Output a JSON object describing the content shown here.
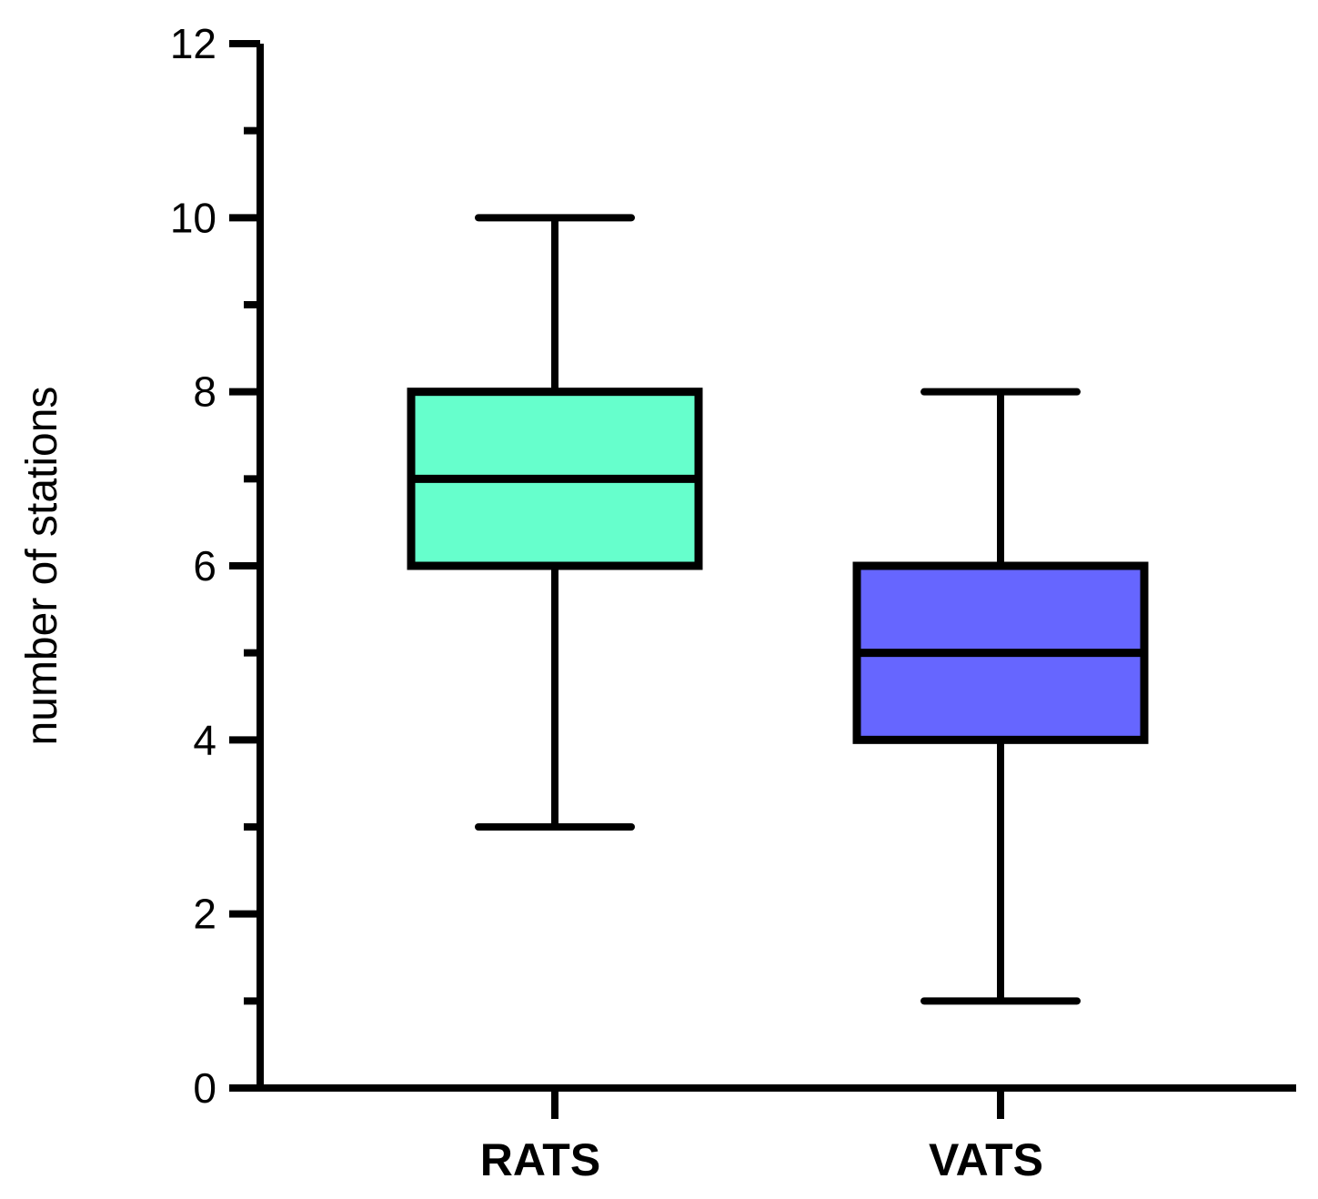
{
  "chart_data": {
    "type": "box",
    "title": "",
    "xlabel": "",
    "ylabel": "number of stations",
    "ylim": [
      0,
      12
    ],
    "yticks_major": [
      0,
      2,
      4,
      6,
      8,
      10,
      12
    ],
    "yticks_minor": [
      1,
      3,
      5,
      7,
      9,
      11
    ],
    "grid": false,
    "categories": [
      "RATS",
      "VATS"
    ],
    "series": [
      {
        "name": "RATS",
        "min": 3,
        "q1": 6,
        "median": 7,
        "q3": 8,
        "max": 10,
        "color": "#66FFCC"
      },
      {
        "name": "VATS",
        "min": 1,
        "q1": 4,
        "median": 5,
        "q3": 6,
        "max": 8,
        "color": "#6666FF"
      }
    ]
  }
}
